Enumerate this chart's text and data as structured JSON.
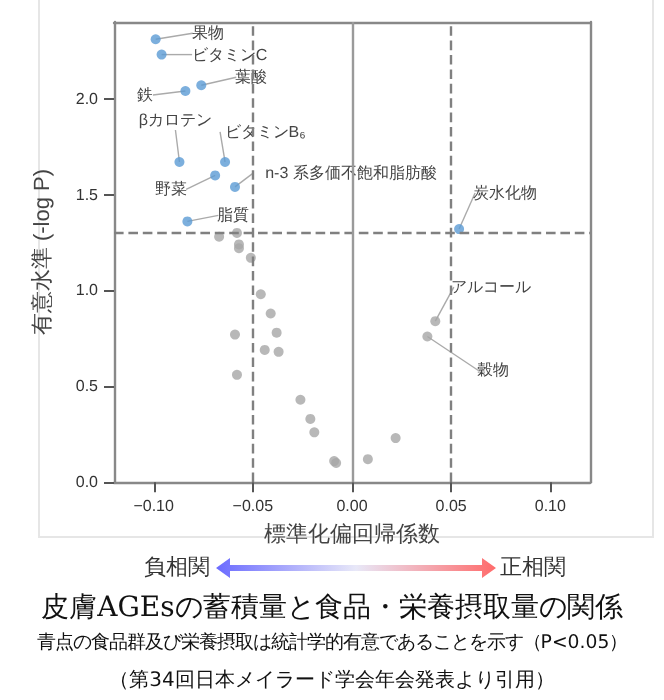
{
  "chart_data": {
    "type": "scatter",
    "xlabel": "標準化偏回帰係数",
    "ylabel": "有意水準 (-log P)",
    "title": "皮膚AGEsの蓄積量と食品・栄養摂取量の関係",
    "subtitle": "青点の食品群及び栄養摂取は統計学的有意であることを示す（P<0.05）",
    "xlim": [
      -0.12,
      0.12
    ],
    "ylim": [
      0,
      2.4
    ],
    "xticks": [
      {
        "value": -0.1,
        "label": "−0.10"
      },
      {
        "value": -0.05,
        "label": "−0.05"
      },
      {
        "value": 0,
        "label": "0.00"
      },
      {
        "value": 0.05,
        "label": "0.05"
      },
      {
        "value": 0.1,
        "label": "0.10"
      }
    ],
    "yticks": [
      {
        "value": 0,
        "label": "0.0"
      },
      {
        "value": 0.5,
        "label": "0.5"
      },
      {
        "value": 1,
        "label": "1.0"
      },
      {
        "value": 1.5,
        "label": "1.5"
      },
      {
        "value": 2,
        "label": "2.0"
      }
    ],
    "marker": "circle",
    "grid": false,
    "series": [
      {
        "color": "#5b9bd5",
        "x": [
          -0.099,
          -0.096,
          -0.084,
          -0.076,
          -0.087,
          -0.064,
          -0.069,
          -0.059,
          -0.083,
          0.054
        ],
        "values": [
          2.31,
          2.23,
          2.04,
          2.07,
          1.67,
          1.67,
          1.6,
          1.54,
          1.36,
          1.32
        ]
      },
      {
        "color": "#a6a6a6",
        "x": [
          -0.067,
          -0.058,
          -0.057,
          -0.057,
          -0.051,
          -0.046,
          -0.041,
          -0.059,
          -0.038,
          -0.044,
          -0.037,
          -0.058,
          -0.026,
          -0.021,
          -0.019,
          -0.009,
          -0.008,
          0.008,
          0.022,
          0.042,
          0.038
        ],
        "values": [
          1.28,
          1.3,
          1.24,
          1.22,
          1.17,
          0.98,
          0.88,
          0.77,
          0.78,
          0.69,
          0.68,
          0.56,
          0.43,
          0.33,
          0.26,
          0.11,
          0.1,
          0.12,
          0.23,
          0.84,
          0.76
        ]
      }
    ],
    "ref_lines": [
      {
        "axis": "y",
        "value": 1.3,
        "line_style": "dashed",
        "color": "#808080"
      },
      {
        "axis": "x",
        "value": -0.05,
        "line_style": "dashed",
        "color": "#808080"
      },
      {
        "axis": "x",
        "value": 0.05,
        "line_style": "dashed",
        "color": "#808080"
      },
      {
        "axis": "x",
        "value": 0,
        "line_style": "solid",
        "color": "#9a9a9a"
      }
    ],
    "annotations": [
      {
        "text": "果物",
        "x": -0.099,
        "y": 2.31
      },
      {
        "text": "ビタミンC",
        "x": -0.096,
        "y": 2.23
      },
      {
        "text": "葉酸",
        "x": -0.076,
        "y": 2.07
      },
      {
        "text": "鉄",
        "x": -0.084,
        "y": 2.04
      },
      {
        "text": "βカロテン",
        "x": -0.087,
        "y": 1.67
      },
      {
        "text": "ビタミンB₆",
        "x": -0.064,
        "y": 1.67
      },
      {
        "text": "野菜",
        "x": -0.069,
        "y": 1.6
      },
      {
        "text": "n-3 系多価不飽和脂肪酸",
        "x": -0.059,
        "y": 1.54
      },
      {
        "text": "脂質",
        "x": -0.083,
        "y": 1.36
      },
      {
        "text": "炭水化物",
        "x": 0.054,
        "y": 1.32
      },
      {
        "text": "アルコール",
        "x": 0.042,
        "y": 0.84
      },
      {
        "text": "穀物",
        "x": 0.038,
        "y": 0.76
      },
      "負相関",
      "正相関",
      "（第34回日本メイラード学会年会発表より引用）"
    ]
  }
}
